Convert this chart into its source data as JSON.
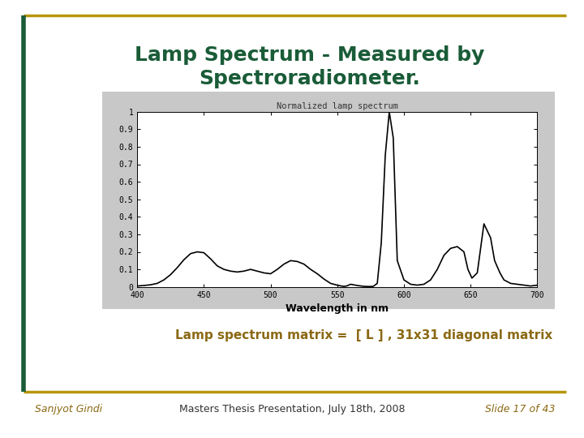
{
  "title_line1": "Lamp Spectrum - Measured by",
  "title_line2": "Spectroradiometer.",
  "title_color": "#1a5c38",
  "title_fontsize": 18,
  "plot_title": "Normalized lamp spectrum",
  "xlabel": "Wavelength in nm",
  "background_color": "#ffffff",
  "plot_outer_bg": "#c8c8c8",
  "plot_inner_bg": "#ffffff",
  "line_color": "#000000",
  "footer_left": "Sanjyot Gindi",
  "footer_center": "Masters Thesis Presentation, July 18th, 2008",
  "footer_right": "Slide 17 of 43",
  "footer_color": "#8B6914",
  "footer_center_color": "#333333",
  "body_text": "Lamp spectrum matrix =  [ L ] , 31x31 diagonal matrix",
  "body_text_color": "#8B6914",
  "border_gold": "#b8960c",
  "border_green": "#1a5c38",
  "xlim": [
    400,
    700
  ],
  "ylim": [
    0,
    1
  ],
  "ytick_labels": [
    "0",
    "0.1",
    "0.2",
    "0.3",
    "0.4",
    "0.5",
    "0.6",
    "0.7",
    "0.8",
    "0.9",
    "1"
  ],
  "ytick_vals": [
    0,
    0.1,
    0.2,
    0.3,
    0.4,
    0.5,
    0.6,
    0.7,
    0.8,
    0.9,
    1.0
  ],
  "xtick_vals": [
    400,
    450,
    500,
    550,
    600,
    650,
    700
  ],
  "wavelengths": [
    400,
    405,
    410,
    415,
    420,
    425,
    430,
    435,
    440,
    445,
    450,
    455,
    460,
    465,
    470,
    475,
    480,
    485,
    490,
    495,
    500,
    505,
    510,
    515,
    520,
    525,
    530,
    535,
    540,
    545,
    550,
    553,
    555,
    557,
    560,
    565,
    570,
    574,
    577,
    580,
    583,
    586,
    589,
    592,
    595,
    600,
    605,
    610,
    615,
    620,
    625,
    630,
    635,
    640,
    645,
    648,
    651,
    655,
    660,
    665,
    668,
    672,
    675,
    680,
    685,
    690,
    695,
    700
  ],
  "spectrum": [
    0.005,
    0.008,
    0.012,
    0.02,
    0.04,
    0.07,
    0.11,
    0.155,
    0.19,
    0.2,
    0.195,
    0.16,
    0.12,
    0.1,
    0.09,
    0.085,
    0.09,
    0.1,
    0.09,
    0.08,
    0.075,
    0.1,
    0.13,
    0.15,
    0.145,
    0.13,
    0.1,
    0.075,
    0.045,
    0.02,
    0.01,
    0.005,
    0.003,
    0.005,
    0.015,
    0.008,
    0.003,
    0.002,
    0.003,
    0.02,
    0.25,
    0.75,
    1.0,
    0.85,
    0.15,
    0.04,
    0.015,
    0.01,
    0.015,
    0.04,
    0.1,
    0.18,
    0.22,
    0.23,
    0.2,
    0.1,
    0.05,
    0.08,
    0.36,
    0.28,
    0.15,
    0.08,
    0.04,
    0.02,
    0.015,
    0.01,
    0.005,
    0.01
  ]
}
